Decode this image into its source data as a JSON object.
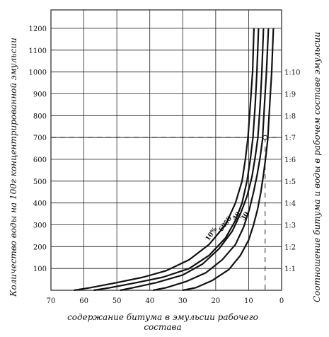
{
  "chart_data": {
    "type": "line",
    "title": "",
    "xlabel_line1": "содержание битума в эмульсии рабочего",
    "xlabel_line2": "состава",
    "ylabel": "Количество воды на 100г концентрированной эмульсии",
    "y2label": "Соотношение битума и воды в рабочем составе эмульсии",
    "xlim": [
      70,
      0
    ],
    "ylim": [
      0,
      1200
    ],
    "x_ticks": [
      "70",
      "60",
      "50",
      "40",
      "30",
      "20",
      "10",
      "0"
    ],
    "y_ticks": [
      "100",
      "200",
      "300",
      "400",
      "500",
      "600",
      "700",
      "800",
      "900",
      "1000",
      "1100",
      "1200"
    ],
    "y2_ticks": [
      {
        "label": "1:1",
        "y": 100
      },
      {
        "label": "1:2",
        "y": 200
      },
      {
        "label": "1:3",
        "y": 300
      },
      {
        "label": "1:4",
        "y": 400
      },
      {
        "label": "1:5",
        "y": 500
      },
      {
        "label": "1:6",
        "y": 600
      },
      {
        "label": "1:7",
        "y": 700
      },
      {
        "label": "1:8",
        "y": 800
      },
      {
        "label": "1:9",
        "y": 900
      },
      {
        "label": "1:10",
        "y": 1000
      }
    ],
    "series": [
      {
        "name": "10%",
        "x": [
          63,
          58,
          50,
          42,
          35,
          28,
          22,
          17,
          14,
          12,
          11,
          10.2,
          9.5,
          8.8,
          8.4
        ],
        "y": [
          0,
          12,
          35,
          60,
          90,
          140,
          210,
          300,
          400,
          500,
          600,
          700,
          850,
          1000,
          1200
        ]
      },
      {
        "name": "60",
        "x": [
          57,
          52,
          44,
          36,
          28,
          22,
          17,
          14,
          12,
          10.5,
          9.5,
          8.7,
          8.0,
          7.5,
          7.0
        ],
        "y": [
          0,
          12,
          35,
          60,
          100,
          160,
          240,
          320,
          400,
          500,
          600,
          700,
          850,
          1000,
          1200
        ]
      },
      {
        "name": "50",
        "x": [
          49,
          45,
          38,
          30,
          24,
          19,
          15,
          12.5,
          10.5,
          9.0,
          8.0,
          7.2,
          6.5,
          6.0,
          5.5
        ],
        "y": [
          0,
          12,
          35,
          70,
          120,
          190,
          270,
          350,
          430,
          520,
          610,
          700,
          850,
          1000,
          1200
        ]
      },
      {
        "name": "40",
        "x": [
          39,
          35,
          29,
          23,
          18,
          14,
          11.5,
          9.8,
          8.5,
          7.4,
          6.5,
          5.8,
          5.2,
          4.6,
          4.0
        ],
        "y": [
          0,
          12,
          40,
          80,
          140,
          210,
          290,
          370,
          450,
          530,
          610,
          690,
          850,
          1000,
          1200
        ]
      },
      {
        "name": "30",
        "x": [
          30,
          26,
          21,
          16,
          12.5,
          10,
          8.5,
          7.3,
          6.3,
          5.5,
          4.8,
          4.2,
          3.6,
          3.0,
          2.5
        ],
        "y": [
          0,
          12,
          45,
          95,
          160,
          230,
          300,
          370,
          450,
          530,
          610,
          690,
          850,
          1000,
          1200
        ]
      }
    ],
    "reference_point": {
      "x": 5,
      "y": 700
    },
    "reference_line_x": 5,
    "reference_line_y": 700,
    "grid": true,
    "colors": {
      "line": "#111111",
      "grid": "#222222",
      "dashed": "#222222"
    }
  }
}
